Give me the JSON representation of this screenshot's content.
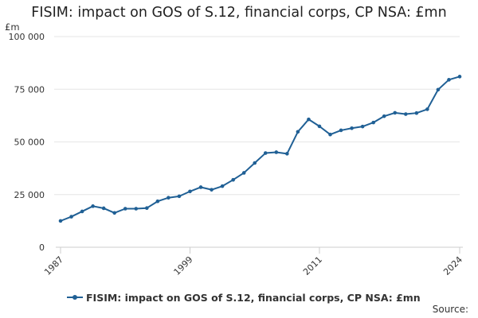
{
  "chart_data": {
    "type": "line",
    "title": "FISIM: impact on GOS of S.12, financial corps, CP NSA: £mn",
    "unit_label": "£m",
    "xlabel": "",
    "ylabel": "£m",
    "ylim": [
      0,
      100000
    ],
    "y_ticks": [
      {
        "value": 0,
        "label": "0"
      },
      {
        "value": 25000,
        "label": "25 000"
      },
      {
        "value": 50000,
        "label": "50 000"
      },
      {
        "value": 75000,
        "label": "75 000"
      },
      {
        "value": 100000,
        "label": "100 000"
      }
    ],
    "xlim": [
      1987,
      2024
    ],
    "x_ticks": [
      {
        "value": 1987,
        "label": "1987"
      },
      {
        "value": 1999,
        "label": "1999"
      },
      {
        "value": 2011,
        "label": "2011"
      },
      {
        "value": 2024,
        "label": "2024"
      }
    ],
    "x": [
      1987,
      1988,
      1989,
      1990,
      1991,
      1992,
      1993,
      1994,
      1995,
      1996,
      1997,
      1998,
      1999,
      2000,
      2001,
      2002,
      2003,
      2004,
      2005,
      2006,
      2007,
      2008,
      2009,
      2010,
      2011,
      2012,
      2013,
      2014,
      2015,
      2016,
      2017,
      2018,
      2019,
      2020,
      2021,
      2022,
      2023,
      2024
    ],
    "series": [
      {
        "name": "FISIM: impact on GOS of S.12, financial corps, CP NSA: £mn",
        "color": "#206095",
        "values": [
          12500,
          14500,
          17000,
          19500,
          18500,
          16300,
          18300,
          18300,
          18600,
          21800,
          23500,
          24200,
          26500,
          28500,
          27300,
          29000,
          32000,
          35300,
          40000,
          44700,
          45100,
          44400,
          54800,
          60700,
          57400,
          53500,
          55500,
          56500,
          57300,
          59200,
          62200,
          63800,
          63200,
          63700,
          65500,
          74800,
          79500,
          81000
        ]
      }
    ],
    "legend_position": "bottom",
    "grid": true
  },
  "source_label": "Source:"
}
